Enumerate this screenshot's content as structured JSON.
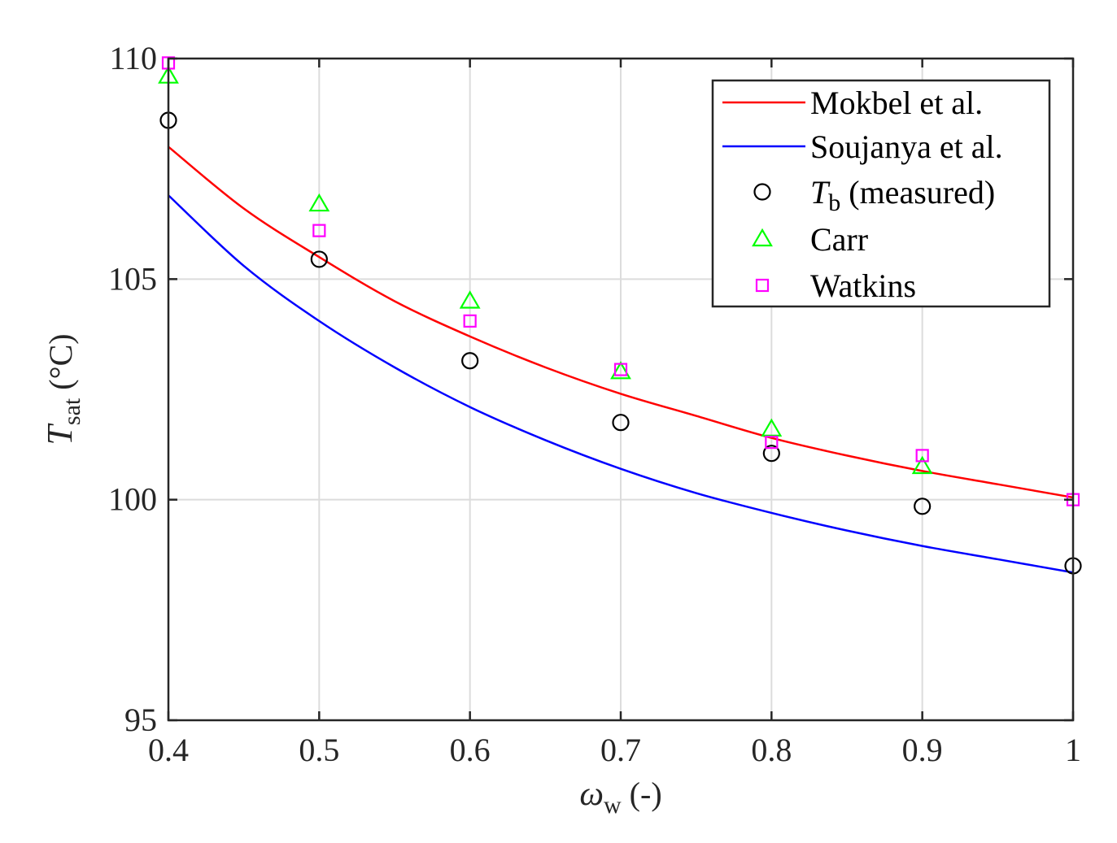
{
  "chart_data": {
    "type": "line",
    "title": "",
    "xlabel": {
      "symbol": "ω",
      "sub": "w",
      "unit": "(-)"
    },
    "ylabel": {
      "symbol": "T",
      "sub": "sat",
      "unit": "(°C)"
    },
    "xlim": [
      0.4,
      1.0
    ],
    "ylim": [
      95,
      110
    ],
    "xticks": [
      0.4,
      0.5,
      0.6,
      0.7,
      0.8,
      0.9,
      1.0
    ],
    "xtick_labels": [
      "0.4",
      "0.5",
      "0.6",
      "0.7",
      "0.8",
      "0.9",
      "1"
    ],
    "yticks": [
      95,
      100,
      105,
      110
    ],
    "ytick_labels": [
      "95",
      "100",
      "105",
      "110"
    ],
    "grid": true,
    "legend_position": "top-right",
    "series": [
      {
        "name": "Mokbel et al.",
        "kind": "line",
        "color": "#ff0000",
        "x": [
          0.4,
          0.45,
          0.5,
          0.55,
          0.6,
          0.65,
          0.7,
          0.75,
          0.8,
          0.85,
          0.9,
          0.95,
          1.0
        ],
        "y": [
          108.0,
          106.6,
          105.5,
          104.5,
          103.7,
          103.0,
          102.4,
          101.9,
          101.4,
          101.0,
          100.65,
          100.35,
          100.05
        ]
      },
      {
        "name": "Soujanya et al.",
        "kind": "line",
        "color": "#0000ff",
        "x": [
          0.4,
          0.45,
          0.5,
          0.55,
          0.6,
          0.65,
          0.7,
          0.75,
          0.8,
          0.85,
          0.9,
          0.95,
          1.0
        ],
        "y": [
          106.9,
          105.3,
          104.05,
          103.0,
          102.1,
          101.35,
          100.7,
          100.15,
          99.7,
          99.3,
          98.95,
          98.65,
          98.35
        ]
      },
      {
        "name": "(measured)",
        "legend_symbol": "T",
        "legend_sub": "b",
        "kind": "marker",
        "marker": "circle",
        "color": "#000000",
        "x": [
          0.4,
          0.5,
          0.6,
          0.7,
          0.8,
          0.9,
          1.0
        ],
        "y": [
          108.6,
          105.45,
          103.15,
          101.75,
          101.05,
          99.85,
          98.5
        ]
      },
      {
        "name": "Carr",
        "kind": "marker",
        "marker": "triangle",
        "color": "#00ff00",
        "x": [
          0.4,
          0.5,
          0.6,
          0.7,
          0.8,
          0.9
        ],
        "y": [
          109.6,
          106.7,
          104.5,
          102.9,
          101.6,
          100.75
        ]
      },
      {
        "name": "Watkins",
        "kind": "marker",
        "marker": "square",
        "color": "#ff00ff",
        "x": [
          0.4,
          0.5,
          0.6,
          0.7,
          0.8,
          0.9,
          1.0
        ],
        "y": [
          109.9,
          106.1,
          104.05,
          102.95,
          101.3,
          101.0,
          100.0
        ]
      }
    ]
  }
}
